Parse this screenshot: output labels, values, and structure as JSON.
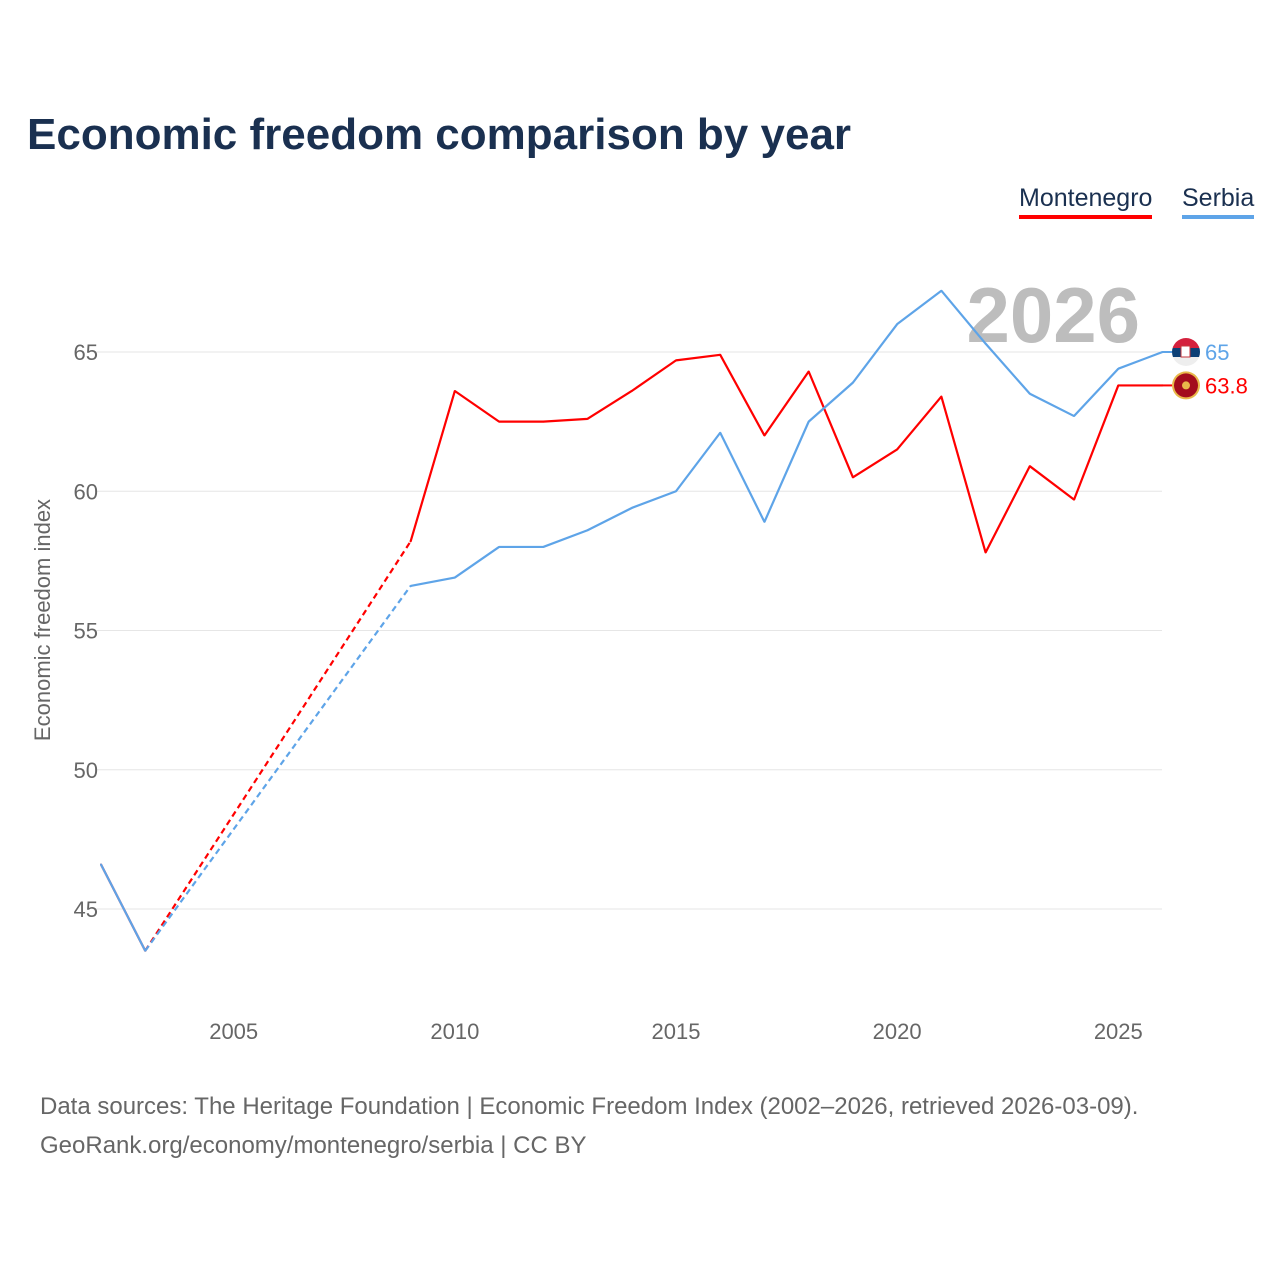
{
  "title": "Economic freedom comparison by year",
  "chart_data": {
    "type": "line",
    "title": "Economic freedom comparison by year",
    "ylabel": "Economic freedom index",
    "xlabel": "",
    "x": [
      2002,
      2003,
      2009,
      2010,
      2011,
      2012,
      2013,
      2014,
      2015,
      2016,
      2017,
      2018,
      2019,
      2020,
      2021,
      2022,
      2023,
      2024,
      2025,
      2026
    ],
    "gap_years": [
      2004,
      2005,
      2006,
      2007,
      2008
    ],
    "xticks": [
      2005,
      2010,
      2015,
      2020,
      2025
    ],
    "yticks": [
      45,
      50,
      55,
      60,
      65
    ],
    "xlim": [
      2002,
      2026
    ],
    "ylim": [
      42,
      69
    ],
    "grid": true,
    "legend_position": "top-right",
    "year_label": "2026",
    "series": [
      {
        "name": "Montenegro",
        "color": "#ff0000",
        "end_label": "63.8",
        "values": [
          46.6,
          43.5,
          58.2,
          63.6,
          62.5,
          62.5,
          62.6,
          63.6,
          64.7,
          64.9,
          62.0,
          64.3,
          60.5,
          61.5,
          63.4,
          57.8,
          60.9,
          59.7,
          63.8,
          63.8
        ]
      },
      {
        "name": "Serbia",
        "color": "#5ea4e8",
        "end_label": "65",
        "values": [
          46.6,
          43.5,
          56.6,
          56.9,
          58.0,
          58.0,
          58.6,
          59.4,
          60.0,
          62.1,
          58.9,
          62.5,
          63.9,
          66.0,
          67.2,
          65.3,
          63.5,
          62.7,
          64.4,
          65.0
        ]
      }
    ]
  },
  "source_line1": "Data sources: The Heritage Foundation | Economic Freedom Index (2002–2026, retrieved 2026-03-09).",
  "source_line2": "GeoRank.org/economy/montenegro/serbia | CC BY"
}
